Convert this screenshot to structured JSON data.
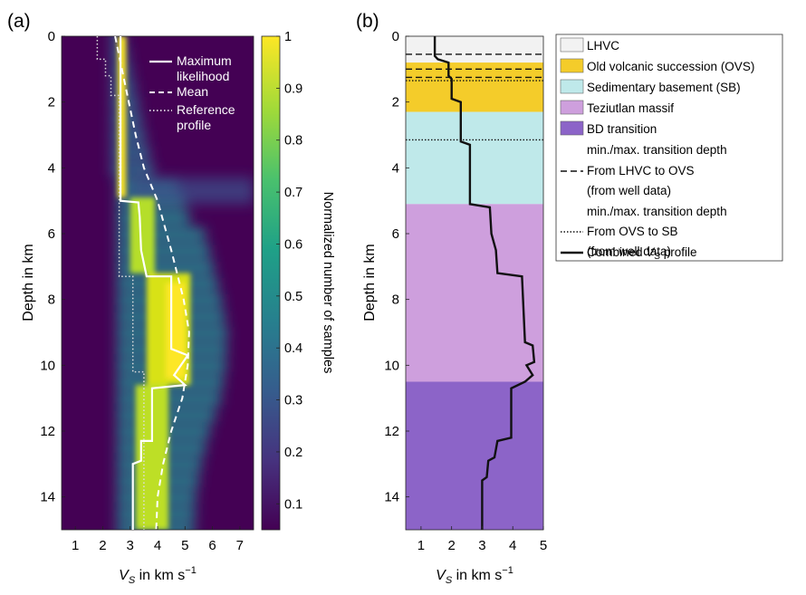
{
  "panel_a": {
    "label": "(a)",
    "ylabel": "Depth in km",
    "xlabel_main": "V",
    "xlabel_sub": "S",
    "xlabel_rest": " in km s",
    "xlabel_exp": "−1",
    "xticks": [
      "1",
      "2",
      "3",
      "4",
      "5",
      "6",
      "7"
    ],
    "yticks": [
      "0",
      "2",
      "4",
      "6",
      "8",
      "10",
      "12",
      "14"
    ],
    "legend": [
      "Maximum",
      "likelihood",
      "Mean",
      "Reference",
      "profile"
    ],
    "colorbar": {
      "label": "Normalized number of samples",
      "ticks": [
        "0.1",
        "0.2",
        "0.3",
        "0.4",
        "0.5",
        "0.6",
        "0.7",
        "0.8",
        "0.9",
        "1"
      ],
      "colors": [
        "#440154",
        "#46327e",
        "#365c8d",
        "#277f8e",
        "#1fa187",
        "#4ac16d",
        "#a0da39",
        "#fde725"
      ]
    }
  },
  "panel_b": {
    "label": "(b)",
    "ylabel": "Depth in km",
    "xlabel_main": "V",
    "xlabel_sub": "S",
    "xlabel_rest": " in km s",
    "xlabel_exp": "−1",
    "xticks": [
      "1",
      "2",
      "3",
      "4",
      "5"
    ],
    "yticks": [
      "0",
      "2",
      "4",
      "6",
      "8",
      "10",
      "12",
      "14"
    ],
    "legend": [
      {
        "text": "LHVC"
      },
      {
        "text": "Old volcanic succession (OVS)"
      },
      {
        "text": "Sedimentary basement (SB)"
      },
      {
        "text": "Teziutlan massif"
      },
      {
        "text": "BD transition"
      },
      {
        "text": "min./max. transition depth"
      },
      {
        "text": "From LHVC to OVS"
      },
      {
        "text": "(from well data)"
      },
      {
        "text": "min./max. transition depth"
      },
      {
        "text": "From OVS to SB"
      },
      {
        "text": "(from well data)"
      },
      {
        "text": "Combined "
      },
      {
        "text": "V"
      },
      {
        "text": "S"
      },
      {
        "text": " profile"
      }
    ]
  },
  "chart_data": [
    {
      "type": "heatmap",
      "panel": "a",
      "title": "",
      "xlabel": "V_S in km s^-1",
      "ylabel": "Depth in km",
      "xlim": [
        0.5,
        7.5
      ],
      "ylim": [
        15,
        0
      ],
      "colorbar_label": "Normalized number of samples",
      "colorbar_range": [
        0.05,
        1
      ],
      "series": [
        {
          "name": "Maximum likelihood",
          "points": [
            [
              2.65,
              0
            ],
            [
              2.65,
              5.0
            ],
            [
              3.3,
              5.05
            ],
            [
              3.35,
              5.5
            ],
            [
              3.4,
              6.5
            ],
            [
              3.6,
              7.3
            ],
            [
              4.5,
              7.3
            ],
            [
              4.5,
              9.5
            ],
            [
              5.1,
              9.7
            ],
            [
              4.6,
              10.3
            ],
            [
              5.0,
              10.6
            ],
            [
              3.8,
              10.7
            ],
            [
              3.8,
              12.3
            ],
            [
              3.4,
              12.3
            ],
            [
              3.4,
              12.9
            ],
            [
              3.1,
              13.0
            ],
            [
              3.1,
              15.0
            ]
          ]
        },
        {
          "name": "Mean",
          "points": [
            [
              2.45,
              0
            ],
            [
              2.7,
              1
            ],
            [
              2.95,
              2
            ],
            [
              3.2,
              3
            ],
            [
              3.5,
              4
            ],
            [
              4.0,
              5
            ],
            [
              4.5,
              6.5
            ],
            [
              4.95,
              8
            ],
            [
              5.15,
              9
            ],
            [
              5.1,
              10
            ],
            [
              4.9,
              11
            ],
            [
              4.5,
              12
            ],
            [
              4.2,
              13
            ],
            [
              4.0,
              14
            ],
            [
              3.95,
              15
            ]
          ]
        },
        {
          "name": "Reference profile",
          "points": [
            [
              1.8,
              0
            ],
            [
              1.8,
              0.7
            ],
            [
              2.1,
              0.7
            ],
            [
              2.1,
              1.2
            ],
            [
              2.3,
              1.2
            ],
            [
              2.3,
              1.8
            ],
            [
              2.6,
              1.8
            ],
            [
              2.6,
              7.3
            ],
            [
              3.1,
              7.3
            ],
            [
              3.1,
              10.2
            ],
            [
              3.5,
              10.2
            ],
            [
              3.5,
              15.0
            ]
          ]
        }
      ]
    },
    {
      "type": "line",
      "panel": "b",
      "title": "",
      "xlabel": "V_S in km s^-1",
      "ylabel": "Depth in km",
      "xlim": [
        0.5,
        5
      ],
      "ylim": [
        15,
        0
      ],
      "layers": [
        {
          "name": "LHVC",
          "top": 0,
          "bottom": 0.8,
          "color": "#f2f2f2"
        },
        {
          "name": "Old volcanic succession (OVS)",
          "top": 0.8,
          "bottom": 2.3,
          "color": "#f4cc2a"
        },
        {
          "name": "Sedimentary basement (SB)",
          "top": 2.3,
          "bottom": 5.1,
          "color": "#bfe9ea"
        },
        {
          "name": "Teziutlan massif",
          "top": 5.1,
          "bottom": 10.5,
          "color": "#ce9fdd"
        },
        {
          "name": "BD transition",
          "top": 10.5,
          "bottom": 15,
          "color": "#8c64c8"
        }
      ],
      "transition_lines": [
        {
          "name": "min./max. transition depth From LHVC to OVS (from well data)",
          "style": "dashed",
          "depths": [
            0.55,
            1.0,
            1.25
          ]
        },
        {
          "name": "min./max. transition depth From OVS to SB (from well data)",
          "style": "dotted",
          "depths": [
            1.35,
            3.15
          ]
        }
      ],
      "series": [
        {
          "name": "Combined V_S profile",
          "points": [
            [
              1.45,
              0
            ],
            [
              1.45,
              0.6
            ],
            [
              1.55,
              0.7
            ],
            [
              1.9,
              0.8
            ],
            [
              1.9,
              1.2
            ],
            [
              2.0,
              1.3
            ],
            [
              2.0,
              1.9
            ],
            [
              2.3,
              2.0
            ],
            [
              2.3,
              3.2
            ],
            [
              2.6,
              3.3
            ],
            [
              2.6,
              5.1
            ],
            [
              3.25,
              5.2
            ],
            [
              3.3,
              6.0
            ],
            [
              3.45,
              6.5
            ],
            [
              3.5,
              7.2
            ],
            [
              4.3,
              7.3
            ],
            [
              4.4,
              9.3
            ],
            [
              4.65,
              9.4
            ],
            [
              4.7,
              9.9
            ],
            [
              4.45,
              10.0
            ],
            [
              4.65,
              10.3
            ],
            [
              4.4,
              10.5
            ],
            [
              3.95,
              10.7
            ],
            [
              3.95,
              12.2
            ],
            [
              3.5,
              12.3
            ],
            [
              3.4,
              12.8
            ],
            [
              3.2,
              12.9
            ],
            [
              3.15,
              13.4
            ],
            [
              3.0,
              13.5
            ],
            [
              3.0,
              15.0
            ]
          ]
        }
      ]
    }
  ]
}
